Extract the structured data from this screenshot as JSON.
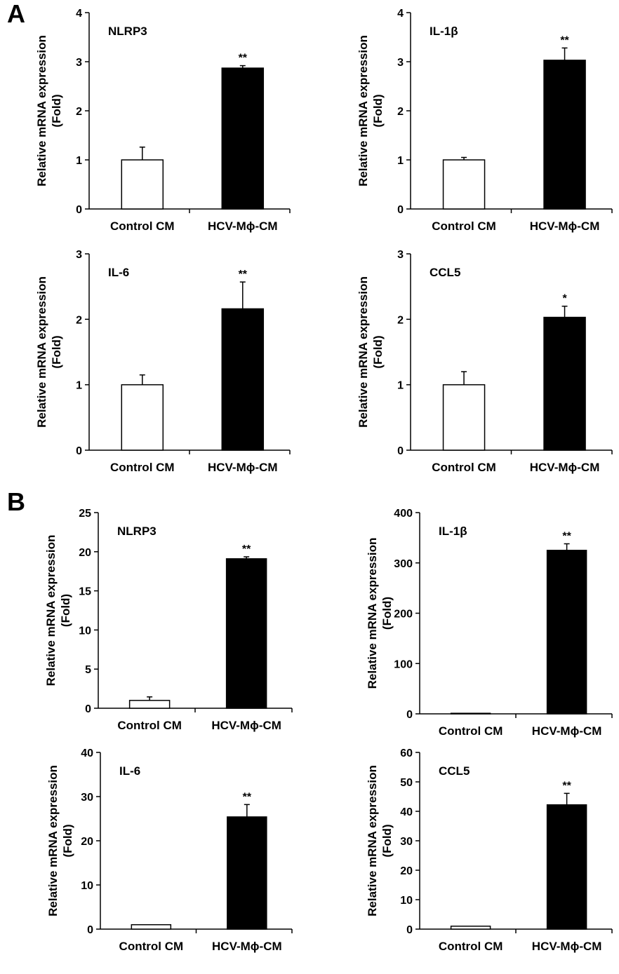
{
  "panels": [
    {
      "label": "A"
    },
    {
      "label": "B"
    }
  ],
  "chart_data": [
    {
      "type": "bar",
      "panel": "A",
      "title": "NLRP3",
      "categories": [
        "Control CM",
        "HCV-Mϕ-CM"
      ],
      "values": [
        1.0,
        2.87
      ],
      "errors": [
        0.26,
        0.05
      ],
      "significance": [
        "",
        "**"
      ],
      "ylabel": "Relative mRNA expression (Fold)",
      "xlabel": "",
      "ylim": [
        0,
        4
      ],
      "yticks": [
        0,
        1,
        2,
        3,
        4
      ],
      "fills": [
        "#ffffff",
        "#000000"
      ],
      "grid": false
    },
    {
      "type": "bar",
      "panel": "A",
      "title": "IL-1β",
      "categories": [
        "Control CM",
        "HCV-Mϕ-CM"
      ],
      "values": [
        1.0,
        3.03
      ],
      "errors": [
        0.05,
        0.25
      ],
      "significance": [
        "",
        "**"
      ],
      "ylabel": "Relative mRNA expression (Fold)",
      "xlabel": "",
      "ylim": [
        0,
        4
      ],
      "yticks": [
        0,
        1,
        2,
        3,
        4
      ],
      "fills": [
        "#ffffff",
        "#000000"
      ],
      "grid": false
    },
    {
      "type": "bar",
      "panel": "A",
      "title": "IL-6",
      "categories": [
        "Control CM",
        "HCV-Mϕ-CM"
      ],
      "values": [
        1.0,
        2.16
      ],
      "errors": [
        0.15,
        0.41
      ],
      "significance": [
        "",
        "**"
      ],
      "ylabel": "Relative mRNA expression (Fold)",
      "xlabel": "",
      "ylim": [
        0,
        3
      ],
      "yticks": [
        0,
        1,
        2,
        3
      ],
      "fills": [
        "#ffffff",
        "#000000"
      ],
      "grid": false
    },
    {
      "type": "bar",
      "panel": "A",
      "title": "CCL5",
      "categories": [
        "Control CM",
        "HCV-Mϕ-CM"
      ],
      "values": [
        1.0,
        2.03
      ],
      "errors": [
        0.2,
        0.17
      ],
      "significance": [
        "",
        "*"
      ],
      "ylabel": "Relative mRNA expression (Fold)",
      "xlabel": "",
      "ylim": [
        0,
        3
      ],
      "yticks": [
        0,
        1,
        2,
        3
      ],
      "fills": [
        "#ffffff",
        "#000000"
      ],
      "grid": false
    },
    {
      "type": "bar",
      "panel": "B",
      "title": "NLRP3",
      "categories": [
        "Control CM",
        "HCV-Mϕ-CM"
      ],
      "values": [
        1.0,
        19.1
      ],
      "errors": [
        0.45,
        0.25
      ],
      "significance": [
        "",
        "**"
      ],
      "ylabel": "Relative mRNA expression (Fold)",
      "xlabel": "",
      "ylim": [
        0,
        25
      ],
      "yticks": [
        0,
        5,
        10,
        15,
        20,
        25
      ],
      "fills": [
        "#ffffff",
        "#000000"
      ],
      "grid": false
    },
    {
      "type": "bar",
      "panel": "B",
      "title": "IL-1β",
      "categories": [
        "Control CM",
        "HCV-Mϕ-CM"
      ],
      "values": [
        0.5,
        325
      ],
      "errors": [
        0,
        13
      ],
      "significance": [
        "",
        "**"
      ],
      "ylabel": "Relative mRNA expression (Fold)",
      "xlabel": "",
      "ylim": [
        0,
        400
      ],
      "yticks": [
        0,
        100,
        200,
        300,
        400
      ],
      "fills": [
        "#ffffff",
        "#000000"
      ],
      "grid": false
    },
    {
      "type": "bar",
      "panel": "B",
      "title": "IL-6",
      "categories": [
        "Control CM",
        "HCV-Mϕ-CM"
      ],
      "values": [
        1.0,
        25.4
      ],
      "errors": [
        0,
        2.8
      ],
      "significance": [
        "",
        "**"
      ],
      "ylabel": "Relative mRNA expression (Fold)",
      "xlabel": "",
      "ylim": [
        0,
        40
      ],
      "yticks": [
        0,
        10,
        20,
        30,
        40
      ],
      "fills": [
        "#ffffff",
        "#000000"
      ],
      "grid": false
    },
    {
      "type": "bar",
      "panel": "B",
      "title": "CCL5",
      "categories": [
        "Control CM",
        "HCV-Mϕ-CM"
      ],
      "values": [
        1.0,
        42.2
      ],
      "errors": [
        0,
        3.9
      ],
      "significance": [
        "",
        "**"
      ],
      "ylabel": "Relative mRNA expression (Fold)",
      "xlabel": "",
      "ylim": [
        0,
        60
      ],
      "yticks": [
        0,
        10,
        20,
        30,
        40,
        50,
        60
      ],
      "fills": [
        "#ffffff",
        "#000000"
      ],
      "grid": false
    }
  ]
}
